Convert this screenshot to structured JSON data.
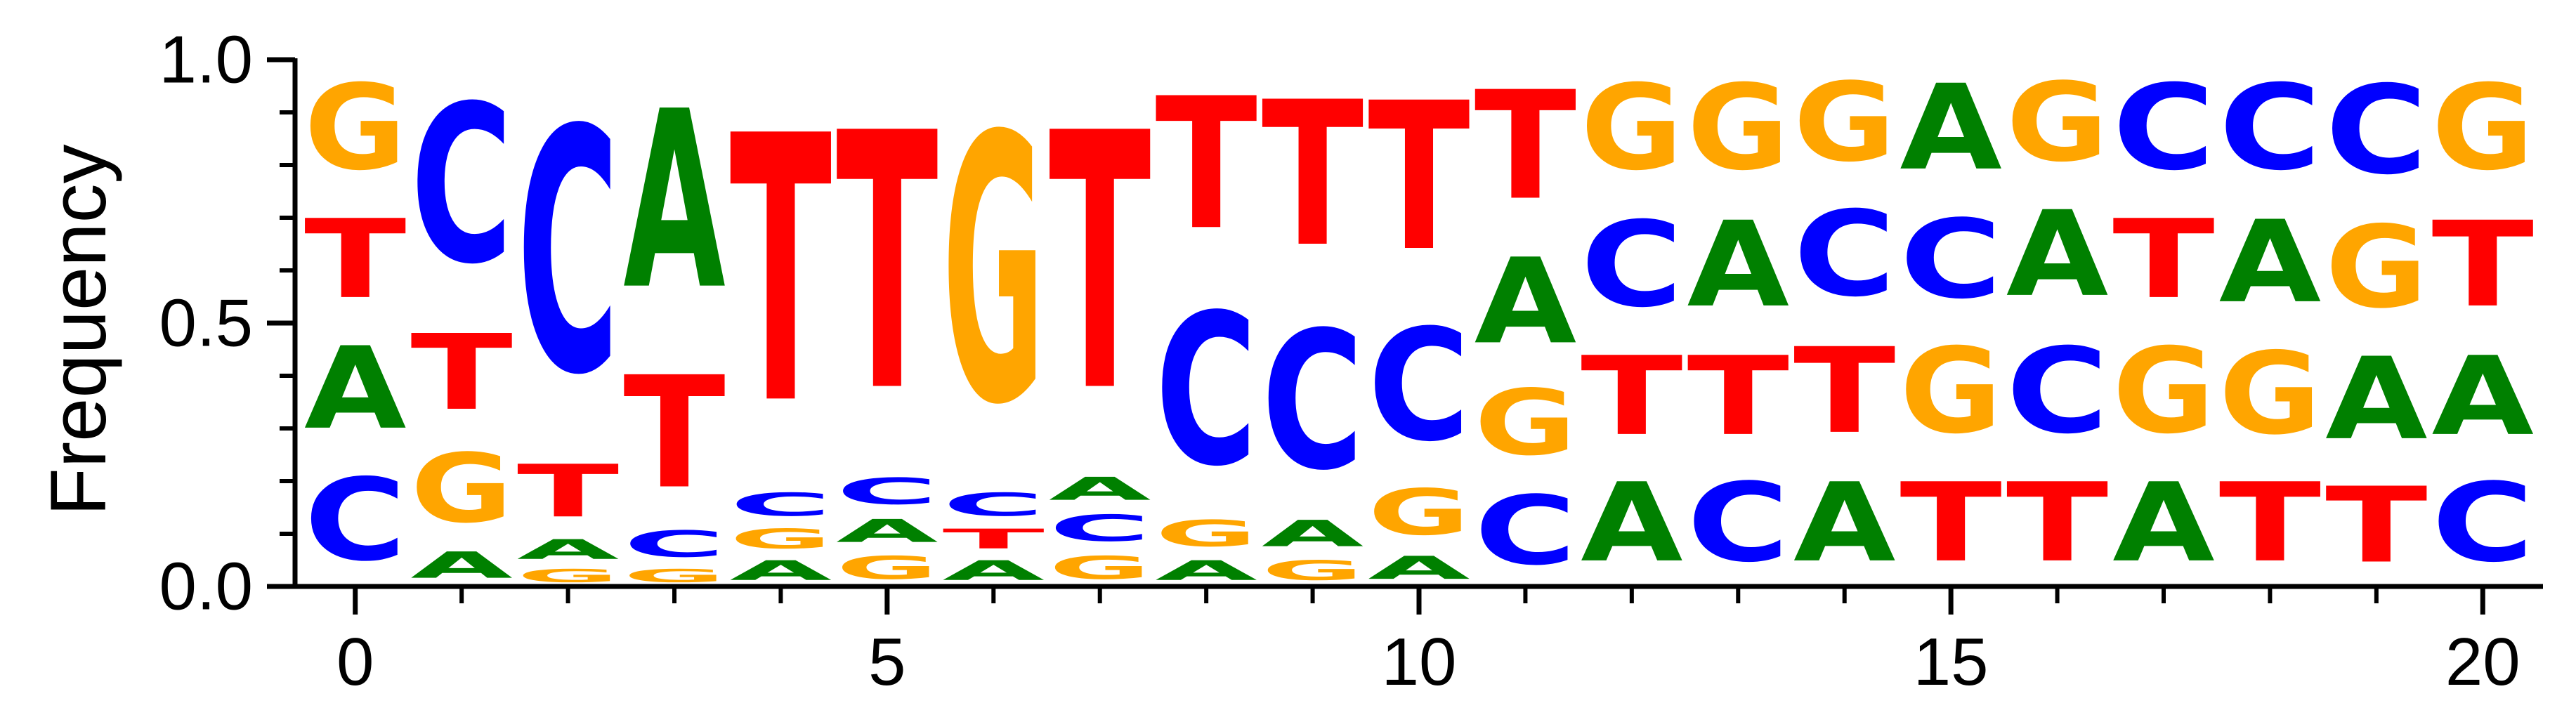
{
  "chart_data": {
    "type": "sequence-logo",
    "ylabel": "Frequency",
    "ylim": [
      0,
      1
    ],
    "xlim": [
      -0.5,
      20.5
    ],
    "yticks": [
      0,
      0.5,
      1
    ],
    "ytick_labels": [
      "0.0",
      "0.5",
      "1.0"
    ],
    "yminor_ticks": [
      0.1,
      0.2,
      0.3,
      0.4,
      0.6,
      0.7,
      0.8,
      0.9
    ],
    "xticks": [
      0,
      5,
      10,
      15,
      20
    ],
    "xtick_labels": [
      "0",
      "5",
      "10",
      "15",
      "20"
    ],
    "xminor_ticks": [
      1,
      2,
      3,
      4,
      6,
      7,
      8,
      9,
      11,
      12,
      13,
      14,
      16,
      17,
      18,
      19
    ],
    "colors": {
      "A": "#008000",
      "C": "#0000ff",
      "G": "#ffa500",
      "T": "#ff0000"
    },
    "positions": [
      {
        "pos": 0,
        "stack": [
          [
            "C",
            0.25
          ],
          [
            "A",
            0.25
          ],
          [
            "T",
            0.24
          ],
          [
            "G",
            0.26
          ]
        ]
      },
      {
        "pos": 1,
        "stack": [
          [
            "A",
            0.08
          ],
          [
            "G",
            0.21
          ],
          [
            "T",
            0.23
          ],
          [
            "C",
            0.48
          ]
        ]
      },
      {
        "pos": 2,
        "stack": [
          [
            "G",
            0.04
          ],
          [
            "A",
            0.06
          ],
          [
            "T",
            0.16
          ],
          [
            "C",
            0.74
          ]
        ]
      },
      {
        "pos": 3,
        "stack": [
          [
            "G",
            0.04
          ],
          [
            "C",
            0.08
          ],
          [
            "T",
            0.34
          ],
          [
            "A",
            0.54
          ]
        ]
      },
      {
        "pos": 4,
        "stack": [
          [
            "A",
            0.06
          ],
          [
            "G",
            0.06
          ],
          [
            "C",
            0.07
          ],
          [
            "T",
            0.81
          ]
        ]
      },
      {
        "pos": 5,
        "stack": [
          [
            "G",
            0.07
          ],
          [
            "A",
            0.07
          ],
          [
            "C",
            0.08
          ],
          [
            "T",
            0.78
          ]
        ]
      },
      {
        "pos": 6,
        "stack": [
          [
            "A",
            0.06
          ],
          [
            "T",
            0.06
          ],
          [
            "C",
            0.07
          ],
          [
            "G",
            0.81
          ]
        ]
      },
      {
        "pos": 7,
        "stack": [
          [
            "G",
            0.07
          ],
          [
            "C",
            0.08
          ],
          [
            "A",
            0.07
          ],
          [
            "T",
            0.78
          ]
        ]
      },
      {
        "pos": 8,
        "stack": [
          [
            "A",
            0.06
          ],
          [
            "G",
            0.08
          ],
          [
            "C",
            0.46
          ],
          [
            "T",
            0.4
          ]
        ]
      },
      {
        "pos": 9,
        "stack": [
          [
            "G",
            0.06
          ],
          [
            "A",
            0.08
          ],
          [
            "C",
            0.42
          ],
          [
            "T",
            0.44
          ]
        ]
      },
      {
        "pos": 10,
        "stack": [
          [
            "A",
            0.07
          ],
          [
            "G",
            0.14
          ],
          [
            "C",
            0.34
          ],
          [
            "T",
            0.45
          ]
        ]
      },
      {
        "pos": 11,
        "stack": [
          [
            "C",
            0.21
          ],
          [
            "G",
            0.2
          ],
          [
            "A",
            0.26
          ],
          [
            "T",
            0.33
          ]
        ]
      },
      {
        "pos": 12,
        "stack": [
          [
            "A",
            0.24
          ],
          [
            "T",
            0.24
          ],
          [
            "C",
            0.26
          ],
          [
            "G",
            0.26
          ]
        ]
      },
      {
        "pos": 13,
        "stack": [
          [
            "C",
            0.24
          ],
          [
            "T",
            0.24
          ],
          [
            "A",
            0.26
          ],
          [
            "G",
            0.26
          ]
        ]
      },
      {
        "pos": 14,
        "stack": [
          [
            "A",
            0.24
          ],
          [
            "T",
            0.26
          ],
          [
            "C",
            0.26
          ],
          [
            "G",
            0.24
          ]
        ]
      },
      {
        "pos": 15,
        "stack": [
          [
            "T",
            0.24
          ],
          [
            "G",
            0.26
          ],
          [
            "C",
            0.24
          ],
          [
            "A",
            0.26
          ]
        ]
      },
      {
        "pos": 16,
        "stack": [
          [
            "T",
            0.24
          ],
          [
            "C",
            0.26
          ],
          [
            "A",
            0.26
          ],
          [
            "G",
            0.24
          ]
        ]
      },
      {
        "pos": 17,
        "stack": [
          [
            "A",
            0.24
          ],
          [
            "G",
            0.26
          ],
          [
            "T",
            0.24
          ],
          [
            "C",
            0.26
          ]
        ]
      },
      {
        "pos": 18,
        "stack": [
          [
            "T",
            0.24
          ],
          [
            "G",
            0.25
          ],
          [
            "A",
            0.25
          ],
          [
            "C",
            0.26
          ]
        ]
      },
      {
        "pos": 19,
        "stack": [
          [
            "T",
            0.23
          ],
          [
            "A",
            0.25
          ],
          [
            "G",
            0.25
          ],
          [
            "C",
            0.27
          ]
        ]
      },
      {
        "pos": 20,
        "stack": [
          [
            "C",
            0.24
          ],
          [
            "A",
            0.24
          ],
          [
            "T",
            0.26
          ],
          [
            "G",
            0.26
          ]
        ]
      }
    ]
  }
}
